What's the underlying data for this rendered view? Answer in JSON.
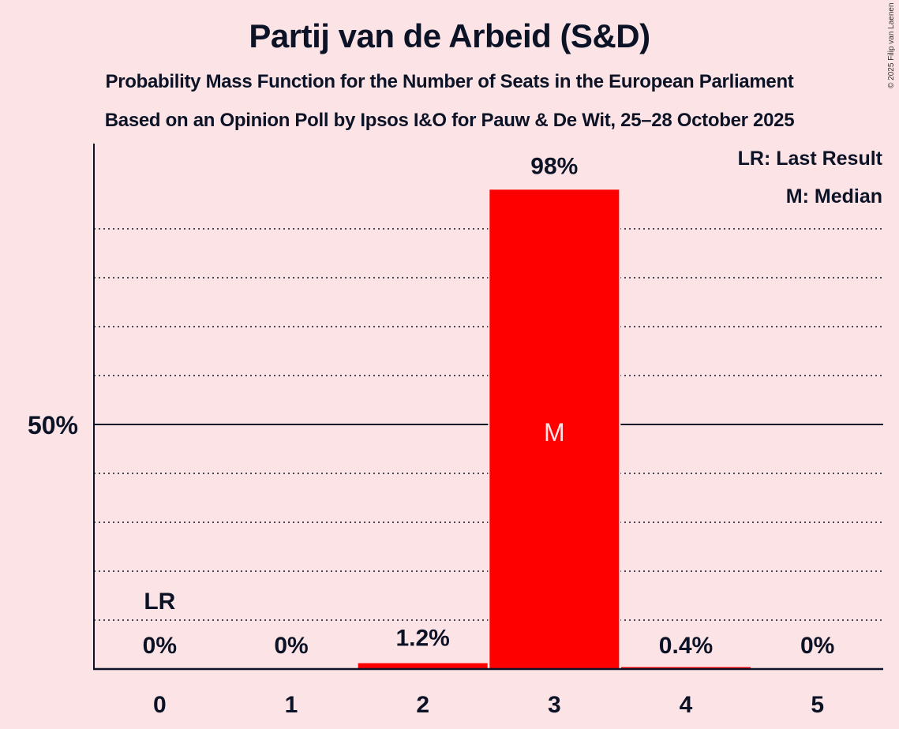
{
  "header": {
    "title": "Partij van de Arbeid (S&D)",
    "subtitle": "Probability Mass Function for the Number of Seats in the European Parliament",
    "source_line": "Based on an Opinion Poll by Ipsos I&O for Pauw & De Wit, 25–28 October 2025",
    "copyright": "© 2025 Filip van Laenen"
  },
  "legend": {
    "last_result": "LR: Last Result",
    "median": "M: Median"
  },
  "colors": {
    "background": "#fce4e6",
    "bar": "#ff0000",
    "text": "#0d1326"
  },
  "chart_data": {
    "type": "bar",
    "title": "Partij van de Arbeid (S&D)",
    "subtitle": "Probability Mass Function for the Number of Seats in the European Parliament",
    "categories": [
      "0",
      "1",
      "2",
      "3",
      "4",
      "5"
    ],
    "values": [
      0,
      0,
      1.2,
      98,
      0.4,
      0
    ],
    "value_labels": [
      "0%",
      "0%",
      "1.2%",
      "98%",
      "0.4%",
      "0%"
    ],
    "xlabel": "",
    "ylabel": "",
    "ylim": [
      0,
      100
    ],
    "yticks": [
      {
        "value": 50,
        "label": "50%"
      }
    ],
    "gridlines": "dotted every 10%, solid at 50%",
    "annotations": [
      {
        "category": "0",
        "label": "LR",
        "meaning": "Last Result"
      },
      {
        "category": "3",
        "label": "M",
        "meaning": "Median"
      }
    ],
    "legend_position": "top-right"
  }
}
